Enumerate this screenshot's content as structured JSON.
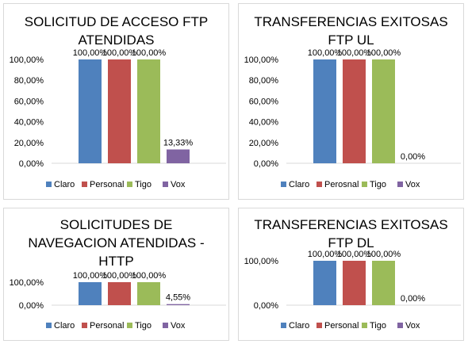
{
  "chart_data": [
    {
      "type": "bar",
      "title": [
        "SOLICITUD DE ACCESO FTP",
        "ATENDIDAS"
      ],
      "categories": [
        ""
      ],
      "series": [
        {
          "name": "Claro",
          "values": [
            100.0
          ],
          "label": "100,00%",
          "color": "#4f81bd"
        },
        {
          "name": "Personal",
          "values": [
            100.0
          ],
          "label": "100,00%",
          "color": "#c0504d"
        },
        {
          "name": "Tigo",
          "values": [
            100.0
          ],
          "label": "100,00%",
          "color": "#9bbb59"
        },
        {
          "name": "Vox",
          "values": [
            13.33
          ],
          "label": "13,33%",
          "color": "#8064a2"
        }
      ],
      "yticks": [
        "0,00%",
        "20,00%",
        "40,00%",
        "60,00%",
        "80,00%",
        "100,00%"
      ],
      "ylim": [
        0,
        100
      ],
      "grid": false,
      "legend": "bottom"
    },
    {
      "type": "bar",
      "title": [
        "TRANSFERENCIAS EXITOSAS",
        "FTP UL"
      ],
      "categories": [
        ""
      ],
      "series": [
        {
          "name": "Claro",
          "values": [
            100.0
          ],
          "label": "100,00%",
          "color": "#4f81bd"
        },
        {
          "name": "Perosnal",
          "values": [
            100.0
          ],
          "label": "100,00%",
          "color": "#c0504d"
        },
        {
          "name": "Tigo",
          "values": [
            100.0
          ],
          "label": "100,00%",
          "color": "#9bbb59"
        },
        {
          "name": "Vox",
          "values": [
            0.0
          ],
          "label": "0,00%",
          "color": "#8064a2"
        }
      ],
      "yticks": [
        "0,00%",
        "20,00%",
        "40,00%",
        "60,00%",
        "80,00%",
        "100,00%"
      ],
      "ylim": [
        0,
        100
      ],
      "grid": false,
      "legend": "bottom"
    },
    {
      "type": "bar",
      "title": [
        "SOLICITUDES DE",
        "NAVEGACION ATENDIDAS -",
        "HTTP"
      ],
      "categories": [
        ""
      ],
      "series": [
        {
          "name": "Claro",
          "values": [
            100.0
          ],
          "label": "100,00%",
          "color": "#4f81bd"
        },
        {
          "name": "Personal",
          "values": [
            100.0
          ],
          "label": "100,00%",
          "color": "#c0504d"
        },
        {
          "name": "Tigo",
          "values": [
            100.0
          ],
          "label": "100,00%",
          "color": "#9bbb59"
        },
        {
          "name": "Vox",
          "values": [
            4.55
          ],
          "label": "4,55%",
          "color": "#8064a2"
        }
      ],
      "yticks": [
        "0,00%",
        "100,00%"
      ],
      "ylim": [
        0,
        100
      ],
      "grid": false,
      "legend": "bottom"
    },
    {
      "type": "bar",
      "title": [
        "TRANSFERENCIAS EXITOSAS",
        "FTP DL"
      ],
      "categories": [
        ""
      ],
      "series": [
        {
          "name": "Claro",
          "values": [
            100.0
          ],
          "label": "100,00%",
          "color": "#4f81bd"
        },
        {
          "name": "Personal",
          "values": [
            100.0
          ],
          "label": "100,00%",
          "color": "#c0504d"
        },
        {
          "name": "Tigo",
          "values": [
            100.0
          ],
          "label": "100,00%",
          "color": "#9bbb59"
        },
        {
          "name": "Vox",
          "values": [
            0.0
          ],
          "label": "0,00%",
          "color": "#8064a2"
        }
      ],
      "yticks": [
        "0,00%",
        "100,00%"
      ],
      "ylim": [
        0,
        100
      ],
      "grid": false,
      "legend": "bottom"
    }
  ]
}
